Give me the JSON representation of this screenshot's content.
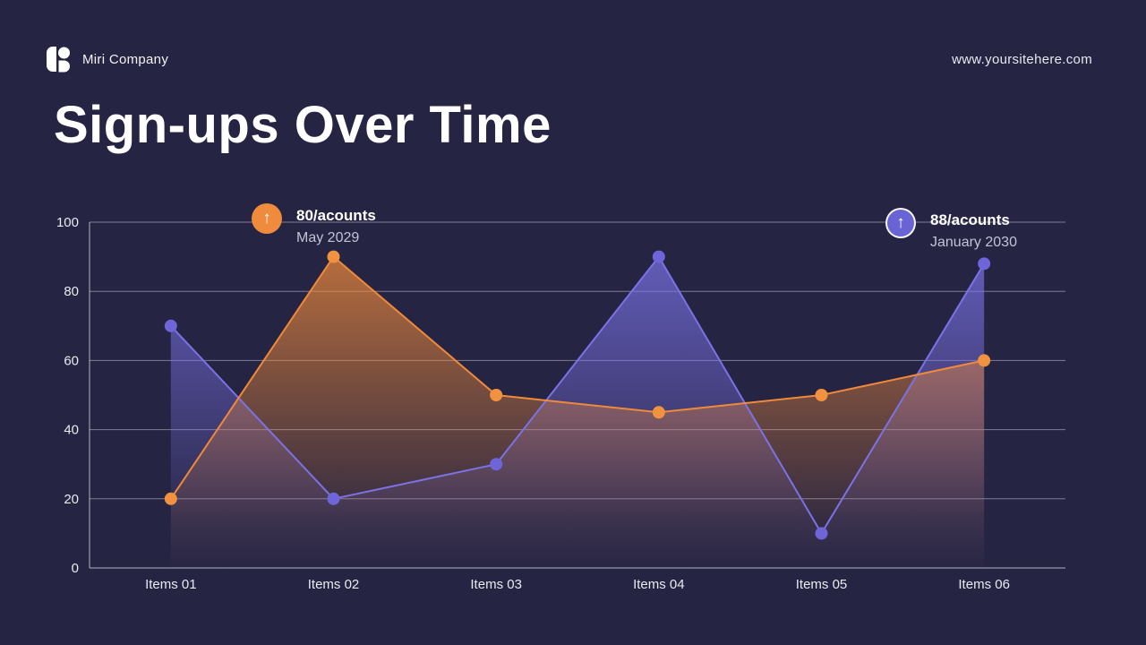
{
  "header": {
    "company": "Miri Company",
    "website": "www.yoursitehere.com"
  },
  "title": "Sign-ups Over Time",
  "annotations": [
    {
      "value": "80/acounts",
      "date": "May 2029",
      "color": "#f08a3c",
      "icon": "arrow-up-icon",
      "icon_glyph": "↑",
      "ringed": false
    },
    {
      "value": "88/acounts",
      "date": "January 2030",
      "color": "#6a63d6",
      "icon": "arrow-up-icon",
      "icon_glyph": "↑",
      "ringed": true
    }
  ],
  "chart_data": {
    "type": "line",
    "title": "Sign-ups Over Time",
    "categories": [
      "Items 01",
      "Items 02",
      "Items 03",
      "Items 04",
      "Items 05",
      "Items 06"
    ],
    "series": [
      {
        "name": "purple-series",
        "color": "#7b72e6",
        "point_color": "#6e65d9",
        "values": [
          70,
          20,
          30,
          90,
          10,
          88
        ]
      },
      {
        "name": "orange-series",
        "color": "#f08a3a",
        "point_color": "#f0923f",
        "values": [
          20,
          90,
          50,
          45,
          50,
          60
        ]
      }
    ],
    "xlabel": "",
    "ylabel": "",
    "ylim": [
      0,
      100
    ],
    "yticks": [
      0,
      20,
      40,
      60,
      80,
      100
    ],
    "grid": true,
    "legend": "none",
    "colors": {
      "background": "#252442",
      "gridline": "rgba(235,235,245,0.45)",
      "axis_text": "#eaeaf3"
    }
  }
}
